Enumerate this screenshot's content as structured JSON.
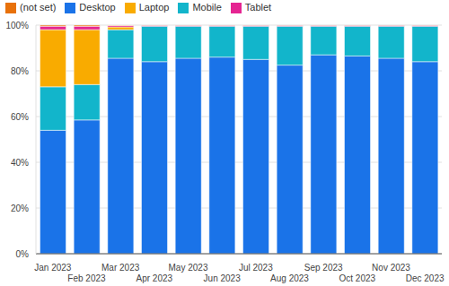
{
  "chart_data": {
    "type": "bar",
    "stacked": true,
    "grid": true,
    "legend": "top-left",
    "categories": [
      "Jan 2023",
      "Feb 2023",
      "Mar 2023",
      "Apr 2023",
      "May 2023",
      "Jun 2023",
      "Jul 2023",
      "Aug 2023",
      "Sep 2023",
      "Oct 2023",
      "Nov 2023",
      "Dec 2023"
    ],
    "series": [
      {
        "name": "Desktop",
        "color": "#1a73e8",
        "values": [
          54,
          58.5,
          85.5,
          84,
          85.5,
          86,
          85,
          82.5,
          87,
          86.5,
          85.5,
          84
        ]
      },
      {
        "name": "Mobile",
        "color": "#12b5cb",
        "values": [
          19,
          15.5,
          12.5,
          15.5,
          14,
          13.5,
          14.5,
          17,
          12.5,
          13,
          14,
          15.5
        ]
      },
      {
        "name": "Laptop",
        "color": "#f9ab00",
        "values": [
          25,
          24,
          1.2,
          0,
          0,
          0,
          0,
          0,
          0,
          0,
          0,
          0
        ]
      },
      {
        "name": "Tablet",
        "color": "#e52592",
        "values": [
          1.5,
          1.5,
          0.6,
          0.4,
          0.4,
          0.4,
          0.4,
          0.4,
          0.4,
          0.4,
          0.4,
          0.4
        ]
      },
      {
        "name": "(not set)",
        "color": "#e8710a",
        "values": [
          0.5,
          0.5,
          0.2,
          0.1,
          0.1,
          0.1,
          0.1,
          0.1,
          0.1,
          0.1,
          0.1,
          0.1
        ]
      }
    ],
    "ylim": [
      0,
      100
    ],
    "yticks": [
      {
        "value": 0,
        "label": "0%"
      },
      {
        "value": 20,
        "label": "20%"
      },
      {
        "value": 40,
        "label": "40%"
      },
      {
        "value": 60,
        "label": "60%"
      },
      {
        "value": 80,
        "label": "80%"
      },
      {
        "value": 100,
        "label": "100%"
      }
    ]
  }
}
